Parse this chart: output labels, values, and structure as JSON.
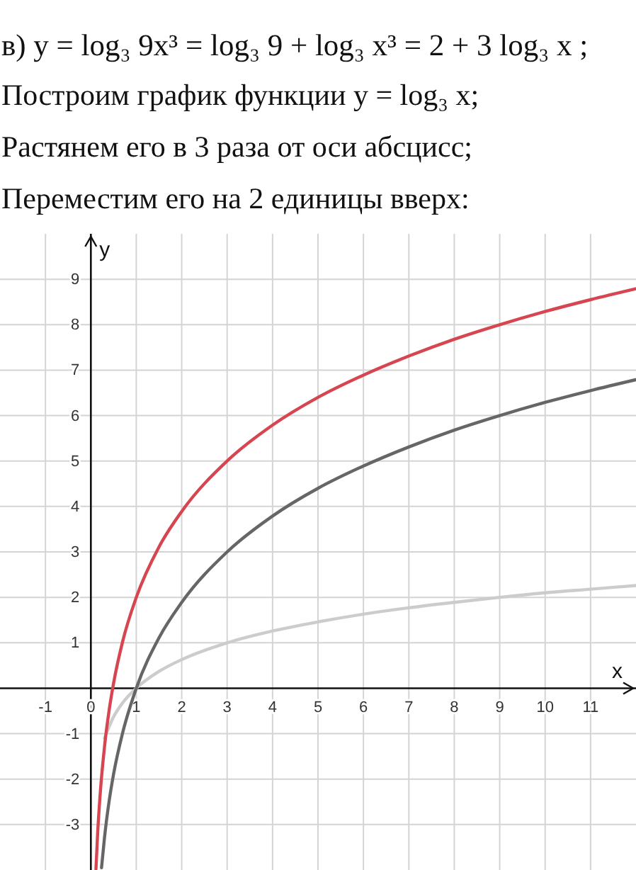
{
  "chart_data": {
    "type": "line",
    "title": "в) y = log₃ 9x³ = log₃ 9 + log₃ x³ = 2 + 3 log₃ x ;",
    "annotations": [
      "Построим график функции y = log₃ x;",
      "Растянем его в 3 раза от оси абсцисс;",
      "Переместим его на 2 единицы вверх:"
    ],
    "xlabel": "x",
    "ylabel": "y",
    "xlim": [
      -2,
      12
    ],
    "ylim": [
      -4,
      10
    ],
    "xticks": [
      -1,
      0,
      1,
      2,
      3,
      4,
      5,
      6,
      7,
      8,
      9,
      10,
      11
    ],
    "yticks": [
      -3,
      -2,
      -1,
      1,
      2,
      3,
      4,
      5,
      6,
      7,
      8,
      9
    ],
    "grid": true,
    "line_style": "solid",
    "series": [
      {
        "color": "#cccccc",
        "x": [
          0.3,
          0.5,
          0.7,
          1,
          1.5,
          2,
          3,
          4,
          5,
          6,
          7,
          8,
          9,
          10,
          11,
          12
        ],
        "values": [
          -1.1,
          -0.63,
          -0.32,
          0,
          0.37,
          0.63,
          1,
          1.26,
          1.46,
          1.63,
          1.77,
          1.89,
          2,
          2.1,
          2.18,
          2.26
        ]
      },
      {
        "color": "#666666",
        "x": [
          0.235,
          0.3,
          0.4,
          0.5,
          0.7,
          1,
          1.5,
          2,
          3,
          4,
          5,
          6,
          7,
          8,
          9,
          10,
          11,
          12
        ],
        "values": [
          -3.95,
          -3.29,
          -2.5,
          -1.89,
          -0.98,
          0,
          1.11,
          1.89,
          3,
          3.79,
          4.4,
          4.89,
          5.31,
          5.68,
          6,
          6.29,
          6.55,
          6.79
        ]
      },
      {
        "color": "#d64550",
        "x": [
          0.112,
          0.15,
          0.2,
          0.3,
          0.4,
          0.5,
          0.7,
          1,
          1.5,
          2,
          3,
          4,
          5,
          6,
          7,
          8,
          9,
          10,
          11,
          12
        ],
        "values": [
          -3.98,
          -3.18,
          -2.4,
          -1.29,
          -0.5,
          0.11,
          1.03,
          2,
          3.11,
          3.89,
          5,
          5.79,
          6.4,
          6.89,
          7.31,
          7.68,
          8,
          8.29,
          8.55,
          8.79
        ]
      }
    ]
  }
}
